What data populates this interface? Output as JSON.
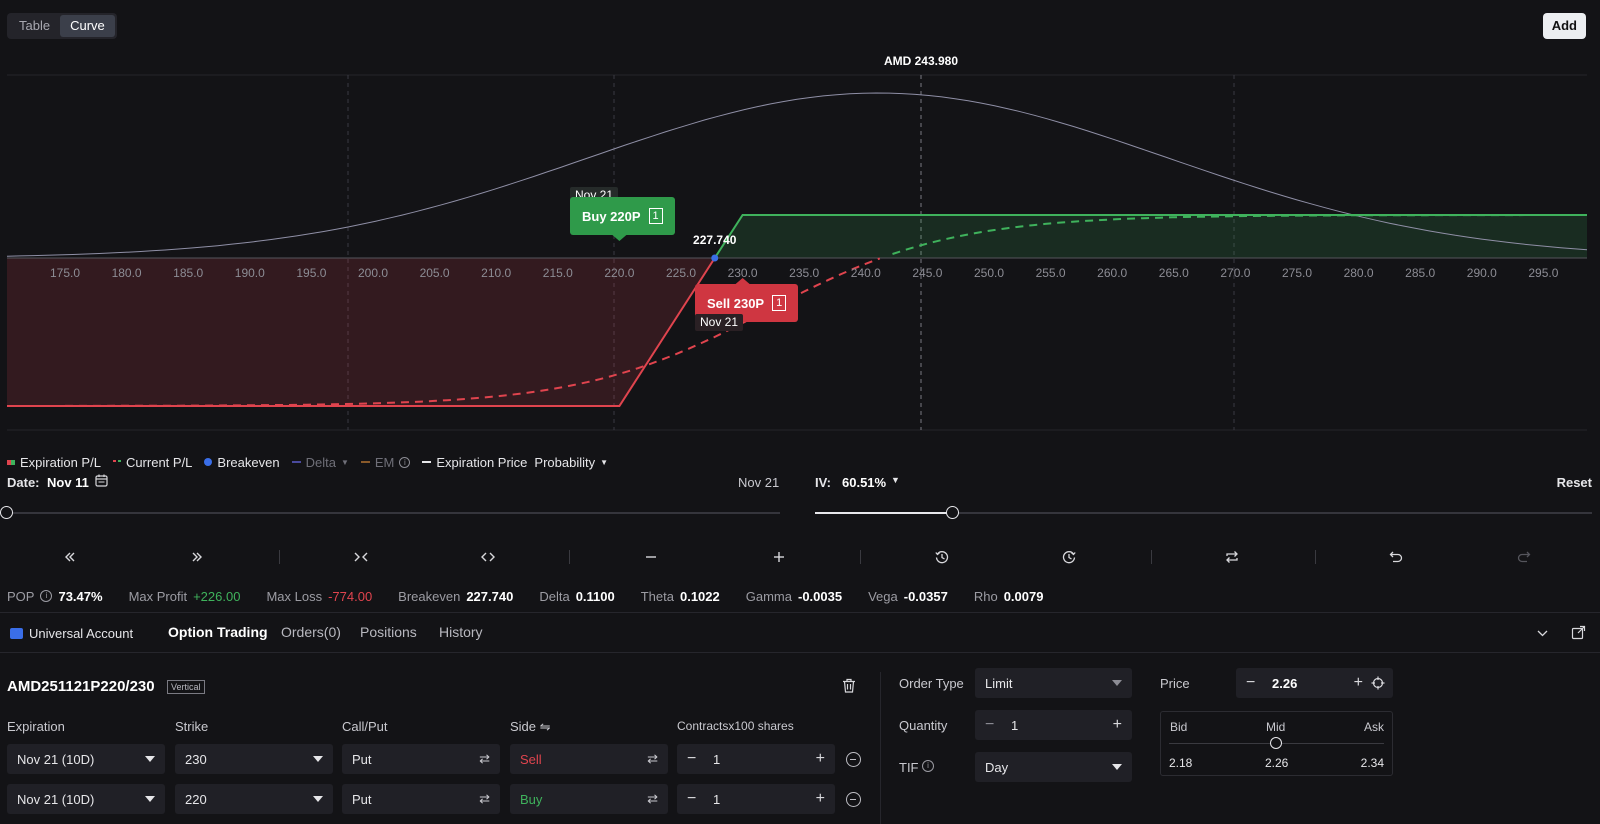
{
  "toggle": {
    "table": "Table",
    "curve": "Curve"
  },
  "add_label": "Add",
  "chart": {
    "price_label": "AMD 243.980",
    "breakeven_label": "227.740",
    "x_ticks": [
      "175.0",
      "180.0",
      "185.0",
      "190.0",
      "195.0",
      "200.0",
      "205.0",
      "210.0",
      "215.0",
      "220.0",
      "225.0",
      "230.0",
      "235.0",
      "240.0",
      "245.0",
      "250.0",
      "255.0",
      "260.0",
      "265.0",
      "270.0",
      "275.0",
      "280.0",
      "285.0",
      "290.0",
      "295.0"
    ],
    "buy_leg": {
      "date": "Nov 21",
      "label": "Buy 220P",
      "qty": "1"
    },
    "sell_leg": {
      "date": "Nov 21",
      "label": "Sell 230P",
      "qty": "1"
    },
    "colors": {
      "profit": "#3fb25c",
      "loss": "#e0444e",
      "breakeven": "#3a6ee8",
      "probability": "#8f8fa6"
    }
  },
  "legend": {
    "expiration_pl": "Expiration P/L",
    "current_pl": "Current P/L",
    "breakeven": "Breakeven",
    "delta": "Delta",
    "em": "EM",
    "expiration_price": "Expiration Price",
    "probability": "Probability"
  },
  "date_row": {
    "date_label": "Date:",
    "date_value": "Nov 11",
    "end_date": "Nov 21",
    "iv_label": "IV:",
    "iv_value": "60.51%",
    "reset": "Reset"
  },
  "stats": {
    "pop_label": "POP",
    "pop": "73.47%",
    "max_profit_label": "Max Profit",
    "max_profit": "+226.00",
    "max_loss_label": "Max Loss",
    "max_loss": "-774.00",
    "breakeven_label": "Breakeven",
    "breakeven": "227.740",
    "delta_label": "Delta",
    "delta": "0.1100",
    "theta_label": "Theta",
    "theta": "0.1022",
    "gamma_label": "Gamma",
    "gamma": "-0.0035",
    "vega_label": "Vega",
    "vega": "-0.0357",
    "rho_label": "Rho",
    "rho": "0.0079"
  },
  "tabs": {
    "account": "Universal Account",
    "option_trading": "Option Trading",
    "orders": "Orders(0)",
    "positions": "Positions",
    "history": "History"
  },
  "order": {
    "symbol": "AMD251121P220/230",
    "badge": "Vertical",
    "headers": {
      "expiration": "Expiration",
      "strike": "Strike",
      "callput": "Call/Put",
      "side": "Side ⇋",
      "contracts": "Contractsx100 shares"
    },
    "legs": [
      {
        "expiration": "Nov 21 (10D)",
        "strike": "230",
        "type": "Put",
        "side": "Sell",
        "qty": "1"
      },
      {
        "expiration": "Nov 21 (10D)",
        "strike": "220",
        "type": "Put",
        "side": "Buy",
        "qty": "1"
      }
    ],
    "order_type_label": "Order Type",
    "order_type": "Limit",
    "quantity_label": "Quantity",
    "quantity": "1",
    "tif_label": "TIF",
    "tif": "Day",
    "price_label": "Price",
    "price": "2.26",
    "bid_label": "Bid",
    "mid_label": "Mid",
    "ask_label": "Ask",
    "bid": "2.18",
    "mid": "2.26",
    "ask": "2.34"
  }
}
